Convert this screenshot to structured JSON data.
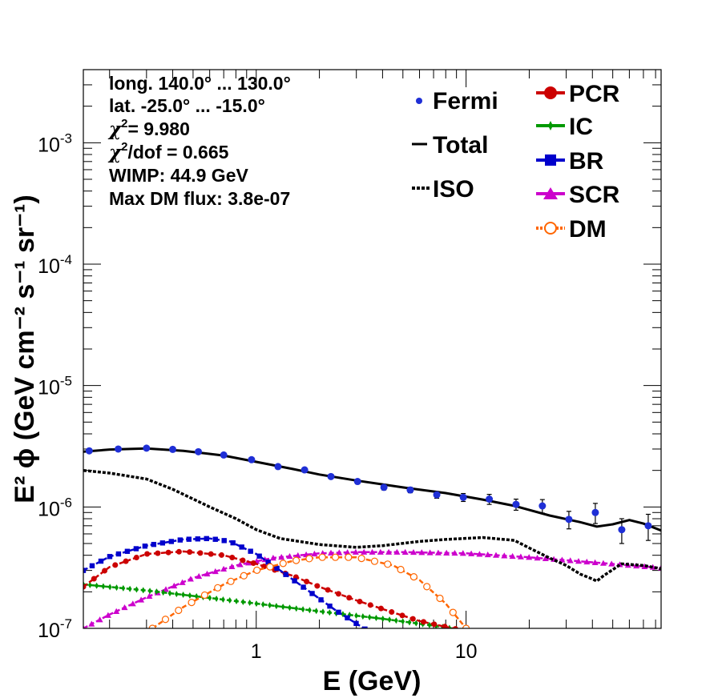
{
  "chart_data": {
    "type": "scatter",
    "xlabel": "E (GeV)",
    "ylabel": "E² ϕ (GeV cm⁻² s⁻¹ sr⁻¹)",
    "xscale": "log",
    "yscale": "log",
    "xlim": [
      0.15,
      85
    ],
    "ylim": [
      1e-07,
      0.004
    ],
    "x_tick_labels": [
      {
        "value": 1,
        "label": "1"
      },
      {
        "value": 10,
        "label": "10"
      }
    ],
    "y_tick_labels": [
      {
        "value": 1e-07,
        "base": "10",
        "exp": "-7"
      },
      {
        "value": 1e-06,
        "base": "10",
        "exp": "-6"
      },
      {
        "value": 1e-05,
        "base": "10",
        "exp": "-5"
      },
      {
        "value": 0.0001,
        "base": "10",
        "exp": "-4"
      },
      {
        "value": 0.001,
        "base": "10",
        "exp": "-3"
      }
    ],
    "stats": {
      "longitude": "long. 140.0° ... 130.0°",
      "latitude": "lat. -25.0° ... -15.0°",
      "chi2": "= 9.980",
      "chi2dof": "/dof = 0.665",
      "wimp": "WIMP: 44.9 GeV",
      "maxdm": "Max DM flux: 3.8e-07"
    },
    "legend": {
      "position": "top-right",
      "fermi": "Fermi",
      "total": "Total",
      "iso": "ISO",
      "pcr": "PCR",
      "ic": "IC",
      "br": "BR",
      "scr": "SCR",
      "dm": "DM"
    },
    "series": {
      "fermi": {
        "color": "#1f2fd6",
        "x": [
          0.16,
          0.22,
          0.3,
          0.4,
          0.53,
          0.7,
          0.95,
          1.27,
          1.7,
          2.27,
          3.04,
          4.06,
          5.42,
          7.25,
          9.7,
          12.9,
          17.3,
          23.1,
          30.9,
          41.3,
          55.2,
          73.8
        ],
        "y": [
          2.9e-06,
          3e-06,
          3.05e-06,
          2.98e-06,
          2.85e-06,
          2.68e-06,
          2.45e-06,
          2.15e-06,
          2.02e-06,
          1.78e-06,
          1.62e-06,
          1.45e-06,
          1.38e-06,
          1.26e-06,
          1.2e-06,
          1.16e-06,
          1.05e-06,
          1.02e-06,
          7.9e-07,
          9e-07,
          6.5e-07,
          7e-07
        ],
        "err_hi": [
          3e-06,
          3.1e-06,
          3.15e-06,
          3.08e-06,
          2.95e-06,
          2.78e-06,
          2.54e-06,
          2.23e-06,
          2.1e-06,
          1.85e-06,
          1.69e-06,
          1.52e-06,
          1.45e-06,
          1.34e-06,
          1.29e-06,
          1.27e-06,
          1.16e-06,
          1.15e-06,
          9.2e-07,
          1.07e-06,
          8e-07,
          8.7e-07
        ],
        "err_lo": [
          2.8e-06,
          2.9e-06,
          2.95e-06,
          2.88e-06,
          2.75e-06,
          2.58e-06,
          2.36e-06,
          2.07e-06,
          1.94e-06,
          1.71e-06,
          1.55e-06,
          1.38e-06,
          1.31e-06,
          1.18e-06,
          1.11e-06,
          1.05e-06,
          9.4e-07,
          8.9e-07,
          6.6e-07,
          7.3e-07,
          5e-07,
          5.3e-07
        ]
      },
      "total": {
        "color": "#000000",
        "x": [
          0.15,
          0.2,
          0.3,
          0.45,
          0.7,
          1.0,
          1.5,
          2.0,
          3.0,
          5.0,
          8.0,
          12.0,
          17.0,
          25.0,
          35.0,
          42.0,
          50.0,
          60.0,
          70.0,
          85.0
        ],
        "y": [
          2.85e-06,
          2.97e-06,
          3.03e-06,
          2.9e-06,
          2.65e-06,
          2.35e-06,
          2.05e-06,
          1.85e-06,
          1.65e-06,
          1.45e-06,
          1.3e-06,
          1.15e-06,
          1.02e-06,
          8.5e-07,
          7.5e-07,
          6.9e-07,
          7.2e-07,
          7.8e-07,
          7.3e-07,
          6.4e-07
        ]
      },
      "iso": {
        "color": "#000000",
        "x": [
          0.15,
          0.2,
          0.3,
          0.4,
          0.6,
          0.8,
          1.0,
          1.3,
          2.0,
          3.0,
          4.0,
          6.0,
          8.0,
          12.0,
          17.0,
          20.0,
          25.0,
          30.0,
          35.0,
          40.0,
          42.0,
          45.0,
          55.0,
          70.0,
          85.0
        ],
        "y": [
          2e-06,
          1.9e-06,
          1.7e-06,
          1.4e-06,
          1e-06,
          8e-07,
          6.5e-07,
          5.5e-07,
          4.9e-07,
          4.65e-07,
          4.8e-07,
          5.2e-07,
          5.4e-07,
          5.6e-07,
          5.3e-07,
          4.6e-07,
          3.8e-07,
          3.3e-07,
          2.8e-07,
          2.55e-07,
          2.45e-07,
          2.7e-07,
          3.4e-07,
          3.3e-07,
          3.1e-07
        ]
      },
      "pcr": {
        "color": "#cc0000",
        "x": [
          0.15,
          0.2,
          0.3,
          0.45,
          0.7,
          1.0,
          1.5,
          2.0,
          3.0,
          4.5,
          6.0,
          8.0,
          10.0
        ],
        "y": [
          2.2e-07,
          3.2e-07,
          4.1e-07,
          4.3e-07,
          4e-07,
          3.4e-07,
          2.7e-07,
          2.2e-07,
          1.7e-07,
          1.35e-07,
          1.15e-07,
          1.03e-07,
          9.5e-08
        ]
      },
      "ic": {
        "color": "#009900",
        "x": [
          0.15,
          0.3,
          0.5,
          1.0,
          2.0,
          4.0,
          8.0,
          12.0
        ],
        "y": [
          2.3e-07,
          2.05e-07,
          1.85e-07,
          1.6e-07,
          1.38e-07,
          1.2e-07,
          1.02e-07,
          9e-08
        ]
      },
      "br": {
        "color": "#0000cc",
        "x": [
          0.15,
          0.2,
          0.3,
          0.45,
          0.6,
          0.75,
          1.0,
          1.3,
          1.8,
          2.4,
          3.2,
          4.0
        ],
        "y": [
          3e-07,
          3.9e-07,
          4.8e-07,
          5.4e-07,
          5.5e-07,
          5.2e-07,
          4.1e-07,
          3e-07,
          2e-07,
          1.4e-07,
          1.02e-07,
          8e-08
        ]
      },
      "scr": {
        "color": "#cc00cc",
        "x": [
          0.15,
          0.2,
          0.3,
          0.5,
          0.8,
          1.2,
          2.0,
          3.0,
          5.0,
          10.0,
          20.0,
          40.0,
          85.0
        ],
        "y": [
          1e-07,
          1.3e-07,
          1.8e-07,
          2.6e-07,
          3.3e-07,
          3.8e-07,
          4.15e-07,
          4.25e-07,
          4.25e-07,
          4.15e-07,
          3.85e-07,
          3.5e-07,
          3.15e-07
        ]
      },
      "dm": {
        "color": "#ff6600",
        "x": [
          0.32,
          0.45,
          0.7,
          1.0,
          1.5,
          2.0,
          3.0,
          4.5,
          6.0,
          8.0,
          10.0
        ],
        "y": [
          1e-07,
          1.5e-07,
          2.3e-07,
          3e-07,
          3.6e-07,
          3.85e-07,
          3.85e-07,
          3.3e-07,
          2.5e-07,
          1.6e-07,
          1e-07
        ]
      }
    }
  }
}
